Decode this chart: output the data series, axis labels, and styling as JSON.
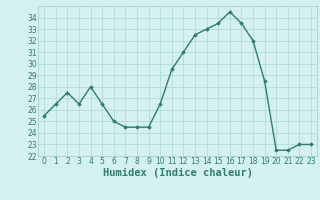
{
  "x": [
    0,
    1,
    2,
    3,
    4,
    5,
    6,
    7,
    8,
    9,
    10,
    11,
    12,
    13,
    14,
    15,
    16,
    17,
    18,
    19,
    20,
    21,
    22,
    23
  ],
  "y": [
    25.5,
    26.5,
    27.5,
    26.5,
    28.0,
    26.5,
    25.0,
    24.5,
    24.5,
    24.5,
    26.5,
    29.5,
    31.0,
    32.5,
    33.0,
    33.5,
    34.5,
    33.5,
    32.0,
    28.5,
    22.5,
    22.5,
    23.0,
    23.0
  ],
  "line_color": "#2e7d6e",
  "marker": "D",
  "marker_size": 1.8,
  "line_width": 1.0,
  "xlabel": "Humidex (Indice chaleur)",
  "bg_color": "#d4f0f0",
  "grid_color": "#a8d8d8",
  "ylim": [
    22,
    35
  ],
  "xlim": [
    -0.5,
    23.5
  ],
  "yticks": [
    22,
    23,
    24,
    25,
    26,
    27,
    28,
    29,
    30,
    31,
    32,
    33,
    34
  ],
  "xticks": [
    0,
    1,
    2,
    3,
    4,
    5,
    6,
    7,
    8,
    9,
    10,
    11,
    12,
    13,
    14,
    15,
    16,
    17,
    18,
    19,
    20,
    21,
    22,
    23
  ],
  "tick_fontsize": 5.5,
  "xlabel_fontsize": 7.5
}
